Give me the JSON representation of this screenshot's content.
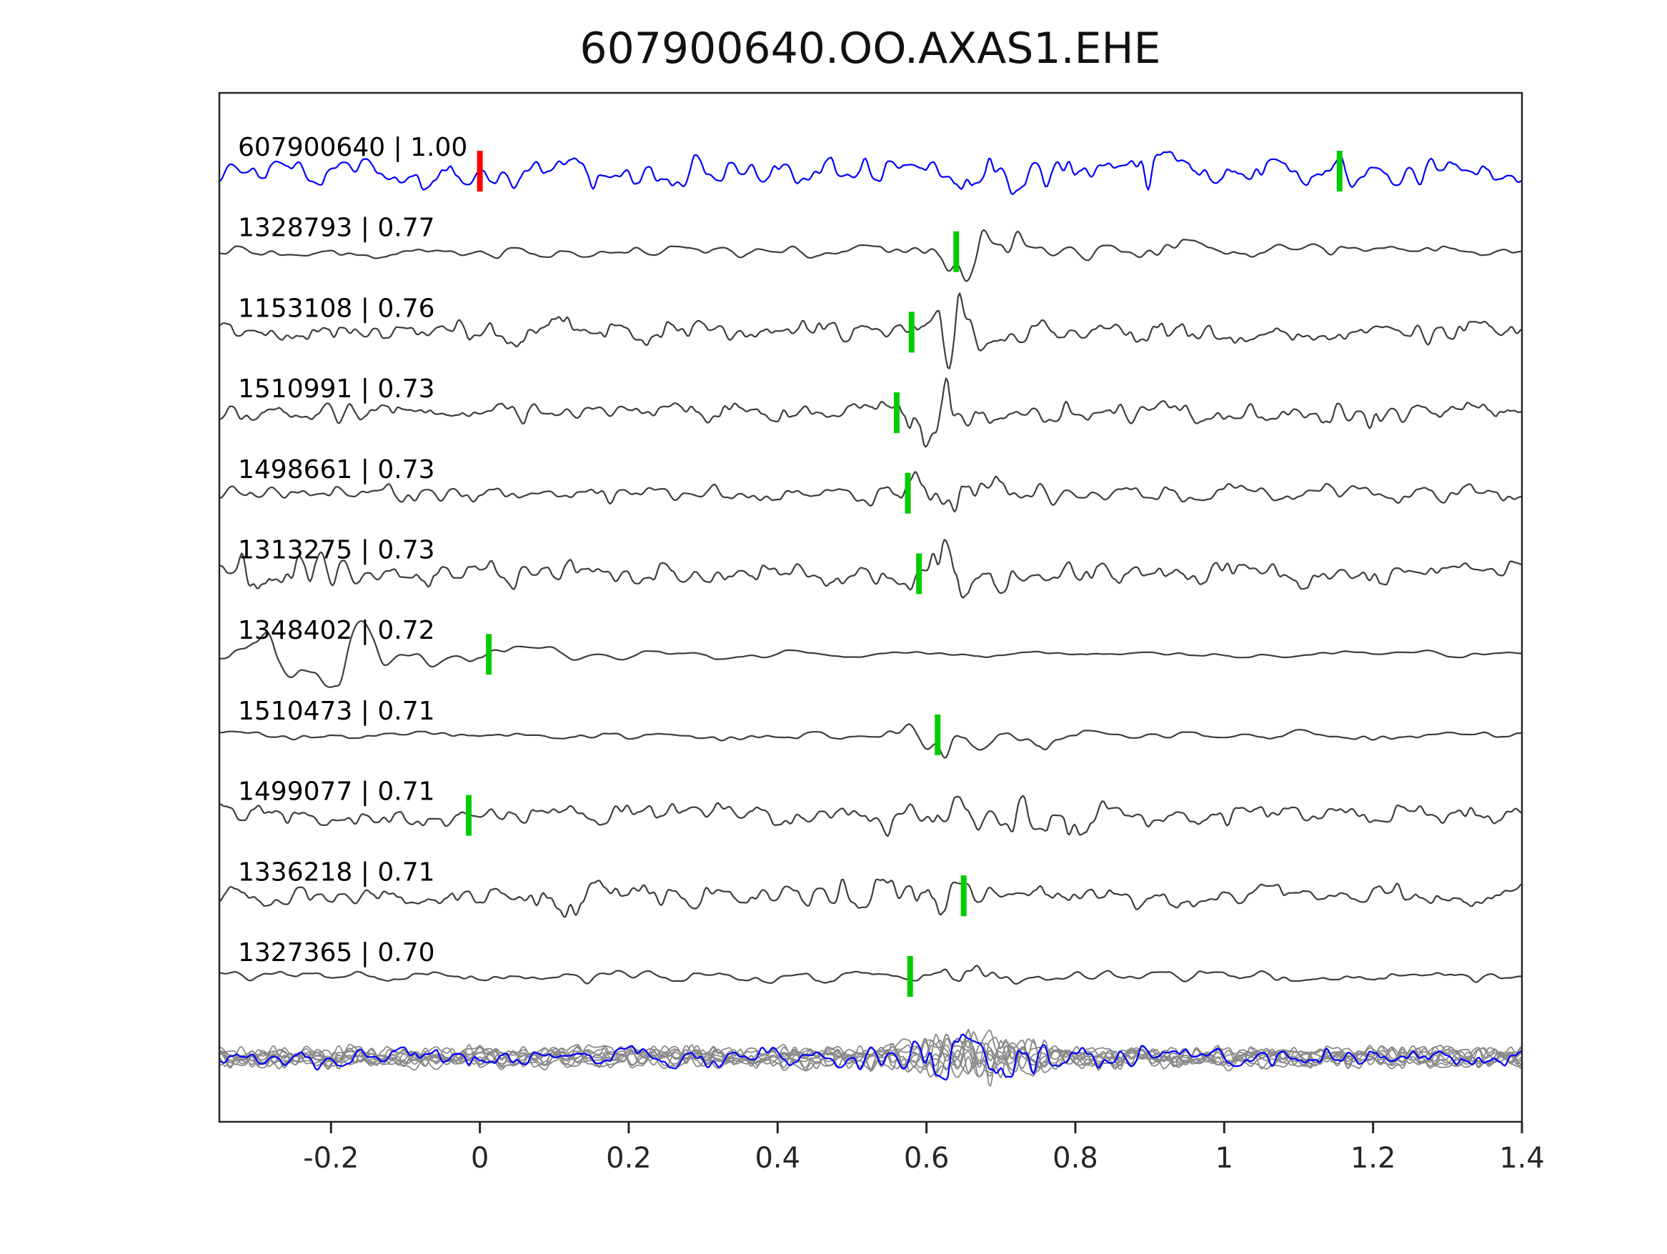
{
  "title": "607900640.OO.AXAS1.EHE",
  "colors": {
    "template_trace": "#0000ff",
    "detection_trace": "#3d3d3d",
    "overlay_gray": "#8a8a8a",
    "pick_marker": "#00cc00",
    "template_marker": "#ff0000",
    "axis": "#262626",
    "label_text": "#000000"
  },
  "chart_data": {
    "type": "line",
    "title": "607900640.OO.AXAS1.EHE",
    "xlabel": "",
    "ylabel": "",
    "grid": false,
    "legend": null,
    "xlim": [
      -0.35,
      1.4
    ],
    "x_ticks": [
      {
        "value": -0.2,
        "label": "-0.2"
      },
      {
        "value": 0.0,
        "label": "0"
      },
      {
        "value": 0.2,
        "label": "0.2"
      },
      {
        "value": 0.4,
        "label": "0.4"
      },
      {
        "value": 0.6,
        "label": "0.6"
      },
      {
        "value": 0.8,
        "label": "0.8"
      },
      {
        "value": 1.0,
        "label": "1"
      },
      {
        "value": 1.2,
        "label": "1.2"
      },
      {
        "value": 1.4,
        "label": "1.4"
      }
    ],
    "traces": [
      {
        "id": "607900640",
        "similarity": 1.0,
        "label": "607900640 | 1.00",
        "color": "#0000ff",
        "markers": [
          {
            "x": 0.0,
            "color": "#ff0000",
            "kind": "template"
          },
          {
            "x": 1.155,
            "color": "#00cc00",
            "kind": "pick"
          }
        ],
        "render": {
          "seed": 101,
          "roughness": 115,
          "amp": 18,
          "events": [
            {
              "x": 0.66,
              "w": 0.12,
              "gain": 0.5
            },
            {
              "x": 0.9,
              "w": 0.05,
              "gain": 0.5
            }
          ]
        }
      },
      {
        "id": "1328793",
        "similarity": 0.77,
        "label": "1328793 | 0.77",
        "color": "#3d3d3d",
        "markers": [
          {
            "x": 0.64,
            "color": "#00cc00",
            "kind": "pick"
          }
        ],
        "render": {
          "seed": 202,
          "roughness": 75,
          "amp": 7,
          "events": [
            {
              "x": 0.675,
              "w": 0.05,
              "gain": 4.5
            },
            {
              "x": 0.62,
              "w": 0.03,
              "gain": 2.0
            },
            {
              "x": 0.95,
              "w": 0.2,
              "gain": 0.8
            }
          ]
        }
      },
      {
        "id": "1153108",
        "similarity": 0.76,
        "label": "1153108 | 0.76",
        "color": "#3d3d3d",
        "markers": [
          {
            "x": 0.58,
            "color": "#00cc00",
            "kind": "pick"
          }
        ],
        "render": {
          "seed": 303,
          "roughness": 125,
          "amp": 13,
          "events": [
            {
              "x": 0.08,
              "w": 0.035,
              "gain": 1.8
            },
            {
              "x": 0.64,
              "w": 0.045,
              "gain": 2.2
            }
          ]
        }
      },
      {
        "id": "1510991",
        "similarity": 0.73,
        "label": "1510991 | 0.73",
        "color": "#3d3d3d",
        "markers": [
          {
            "x": 0.56,
            "color": "#00cc00",
            "kind": "pick"
          }
        ],
        "render": {
          "seed": 404,
          "roughness": 120,
          "amp": 12,
          "events": [
            {
              "x": 0.615,
              "w": 0.05,
              "gain": 2.2
            },
            {
              "x": 1.17,
              "w": 0.035,
              "gain": 1.6
            }
          ]
        }
      },
      {
        "id": "1498661",
        "similarity": 0.73,
        "label": "1498661 | 0.73",
        "color": "#3d3d3d",
        "markers": [
          {
            "x": 0.575,
            "color": "#00cc00",
            "kind": "pick"
          }
        ],
        "render": {
          "seed": 505,
          "roughness": 100,
          "amp": 11,
          "events": [
            {
              "x": 0.665,
              "w": 0.06,
              "gain": 2.4
            },
            {
              "x": 0.57,
              "w": 0.03,
              "gain": 1.2
            }
          ]
        }
      },
      {
        "id": "1313275",
        "similarity": 0.73,
        "label": "1313275 | 0.73",
        "color": "#3d3d3d",
        "markers": [
          {
            "x": 0.59,
            "color": "#00cc00",
            "kind": "pick"
          }
        ],
        "render": {
          "seed": 606,
          "roughness": 115,
          "amp": 16,
          "events": [
            {
              "x": -0.28,
              "w": 0.1,
              "gain": 0.7
            },
            {
              "x": 0.64,
              "w": 0.05,
              "gain": 1.7
            }
          ]
        }
      },
      {
        "id": "1348402",
        "similarity": 0.72,
        "label": "1348402 | 0.72",
        "color": "#3d3d3d",
        "markers": [
          {
            "x": 0.012,
            "color": "#00cc00",
            "kind": "pick"
          }
        ],
        "render": {
          "seed": 707,
          "roughness": 55,
          "amp": 5,
          "events": [
            {
              "x": -0.17,
              "w": 0.16,
              "gain": 7.5
            }
          ]
        }
      },
      {
        "id": "1510473",
        "similarity": 0.71,
        "label": "1510473 | 0.71",
        "color": "#3d3d3d",
        "markers": [
          {
            "x": 0.615,
            "color": "#00cc00",
            "kind": "pick"
          }
        ],
        "render": {
          "seed": 808,
          "roughness": 70,
          "amp": 6,
          "events": [
            {
              "x": 0.625,
              "w": 0.045,
              "gain": 4.5
            },
            {
              "x": 0.76,
              "w": 0.05,
              "gain": 3.0
            }
          ]
        }
      },
      {
        "id": "1499077",
        "similarity": 0.71,
        "label": "1499077 | 0.71",
        "color": "#3d3d3d",
        "markers": [
          {
            "x": -0.015,
            "color": "#00cc00",
            "kind": "pick"
          }
        ],
        "render": {
          "seed": 909,
          "roughness": 115,
          "amp": 13,
          "events": [
            {
              "x": 0.68,
              "w": 0.18,
              "gain": 0.9
            }
          ]
        }
      },
      {
        "id": "1336218",
        "similarity": 0.71,
        "label": "1336218 | 0.71",
        "color": "#3d3d3d",
        "markers": [
          {
            "x": 0.65,
            "color": "#00cc00",
            "kind": "pick"
          }
        ],
        "render": {
          "seed": 1010,
          "roughness": 115,
          "amp": 13,
          "events": [
            {
              "x": 0.13,
              "w": 0.05,
              "gain": 1.0
            },
            {
              "x": 0.58,
              "w": 0.07,
              "gain": 1.8
            }
          ]
        }
      },
      {
        "id": "1327365",
        "similarity": 0.7,
        "label": "1327365 | 0.70",
        "color": "#3d3d3d",
        "markers": [
          {
            "x": 0.578,
            "color": "#00cc00",
            "kind": "pick"
          }
        ],
        "render": {
          "seed": 1111,
          "roughness": 85,
          "amp": 7,
          "events": [
            {
              "x": 0.65,
              "w": 0.04,
              "gain": 4.2
            }
          ]
        }
      }
    ],
    "overlay_row": {
      "description": "all detections overlaid with template",
      "gray_count": 10,
      "gray_color": "#8a8a8a",
      "blue_color": "#0000ff",
      "seed": 2000,
      "roughness": 120,
      "amp": 13,
      "events": [
        {
          "x": 0.66,
          "w": 0.09,
          "gain": 1.3
        }
      ]
    }
  }
}
